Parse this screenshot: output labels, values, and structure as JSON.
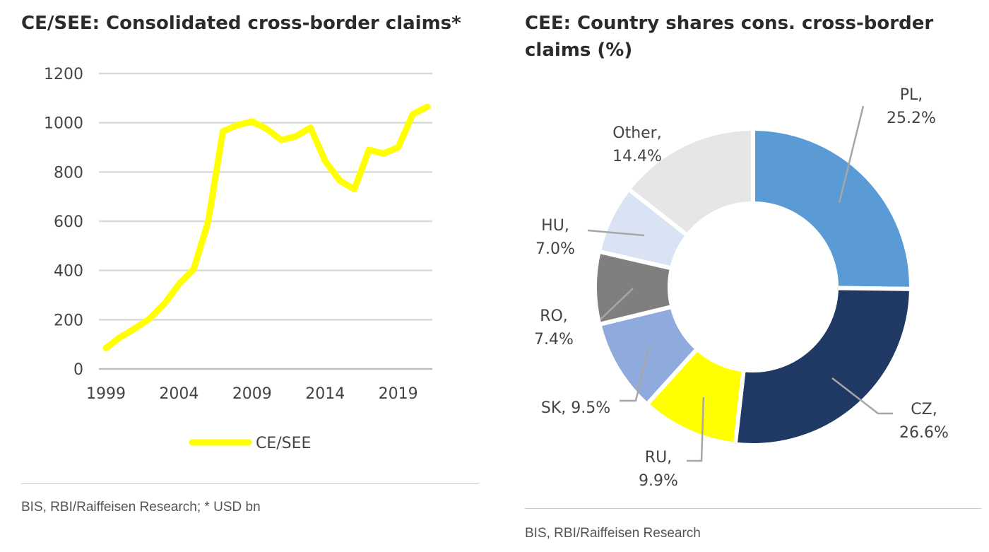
{
  "left": {
    "title": "CE/SEE: Consolidated cross-border claims*",
    "source": "BIS, RBI/Raiffeisen Research; * USD bn"
  },
  "right": {
    "title": "CEE: Country shares cons. cross-border claims (%)",
    "source": "BIS, RBI/Raiffeisen Research"
  },
  "colors": {
    "line": "#ffff00",
    "grid": "#d9d9d9",
    "PL": "#5b9bd5",
    "CZ": "#1f3864",
    "RU": "#ffff00",
    "SK": "#8faadc",
    "RO": "#7f7f7f",
    "HU": "#dae3f3",
    "Other": "#e7e6e6"
  },
  "chart_data": [
    {
      "type": "line",
      "title": "CE/SEE: Consolidated cross-border claims*",
      "ylim": [
        0,
        1200
      ],
      "yticks": [
        0,
        200,
        400,
        600,
        800,
        1000,
        1200
      ],
      "xticks": [
        1999,
        2004,
        2009,
        2014,
        2019
      ],
      "grid": true,
      "legend": "bottom",
      "series": [
        {
          "name": "CE/SEE",
          "x": [
            1999,
            2000,
            2001,
            2002,
            2003,
            2004,
            2005,
            2006,
            2007,
            2008,
            2009,
            2010,
            2011,
            2012,
            2013,
            2014,
            2015,
            2016,
            2017,
            2018,
            2019,
            2020,
            2021
          ],
          "y": [
            85,
            130,
            165,
            205,
            265,
            345,
            405,
            600,
            965,
            990,
            1005,
            975,
            930,
            945,
            980,
            845,
            765,
            730,
            890,
            875,
            900,
            1035,
            1065
          ]
        }
      ]
    },
    {
      "type": "pie",
      "title": "CEE: Country shares cons. cross-border claims (%)",
      "donut": true,
      "slices": [
        {
          "label": "PL",
          "text": "PL,\n25.2%",
          "value": 25.2
        },
        {
          "label": "CZ",
          "text": "CZ,\n26.6%",
          "value": 26.6
        },
        {
          "label": "RU",
          "text": "RU,\n9.9%",
          "value": 9.9
        },
        {
          "label": "SK",
          "text": "SK, 9.5%",
          "value": 9.5
        },
        {
          "label": "RO",
          "text": "RO,\n7.4%",
          "value": 7.4
        },
        {
          "label": "HU",
          "text": "HU,\n7.0%",
          "value": 7.0
        },
        {
          "label": "Other",
          "text": "Other,\n14.4%",
          "value": 14.4
        }
      ]
    }
  ]
}
